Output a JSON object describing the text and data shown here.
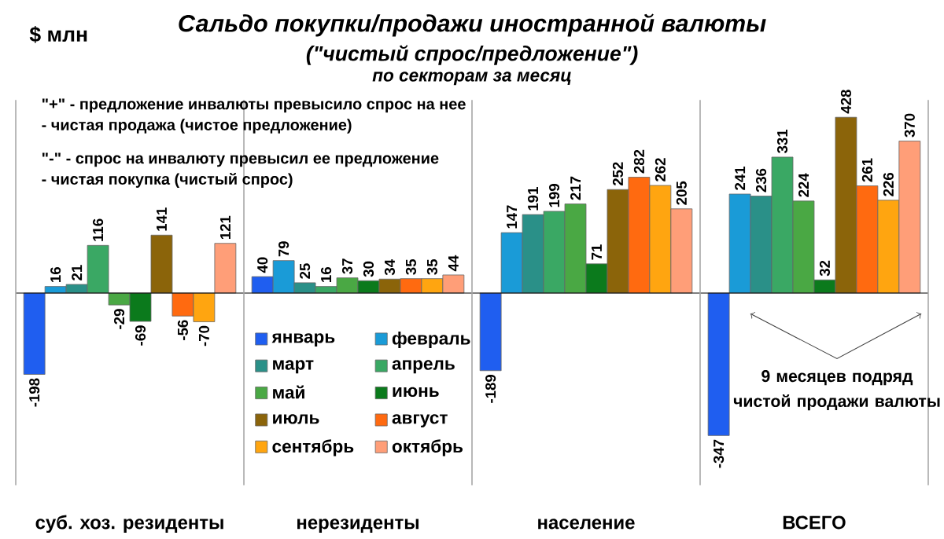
{
  "chart_data": {
    "type": "bar",
    "title": "Сальдо покупки/продажи  иностранной валюты",
    "subtitle": "(\"чистый спрос/предложение\")",
    "ylabel": "$ млн",
    "categories": [
      "суб. хоз. резиденты",
      "нерезиденты",
      "население",
      "ВСЕГО"
    ],
    "series": [
      {
        "name": "январь",
        "color": "#1f5ef0",
        "values": [
          -198,
          40,
          -189,
          -347
        ]
      },
      {
        "name": "февраль",
        "color": "#1a9bd7",
        "values": [
          16,
          79,
          147,
          241
        ]
      },
      {
        "name": "март",
        "color": "#2a9088",
        "values": [
          21,
          25,
          191,
          236
        ]
      },
      {
        "name": "апрель",
        "color": "#3aa864",
        "values": [
          116,
          16,
          199,
          331
        ]
      },
      {
        "name": "май",
        "color": "#4aa844",
        "values": [
          -29,
          37,
          217,
          224
        ]
      },
      {
        "name": "июнь",
        "color": "#0b7a1c",
        "values": [
          -69,
          30,
          71,
          32
        ]
      },
      {
        "name": "июль",
        "color": "#8b640a",
        "values": [
          141,
          34,
          252,
          428
        ]
      },
      {
        "name": "август",
        "color": "#ff6a10",
        "values": [
          -56,
          35,
          282,
          261
        ]
      },
      {
        "name": "сентябрь",
        "color": "#ffa510",
        "values": [
          -70,
          35,
          262,
          226
        ]
      },
      {
        "name": "октябрь",
        "color": "#ff9e78",
        "values": [
          121,
          44,
          205,
          370
        ]
      }
    ],
    "data_labels": true,
    "legend": "bottom",
    "annotations": [
      "по секторам за месяц",
      "\"+\" - предложение инвалюты превысило спрос  на нее",
      "- чистая продажа  (чистое предложение)",
      "\"-\" - спрос  на инвалюту превысил ее предложение",
      "- чистая покупка  (чистый спрос)",
      "9 месяцев  подряд чистой продажи валюты"
    ]
  }
}
